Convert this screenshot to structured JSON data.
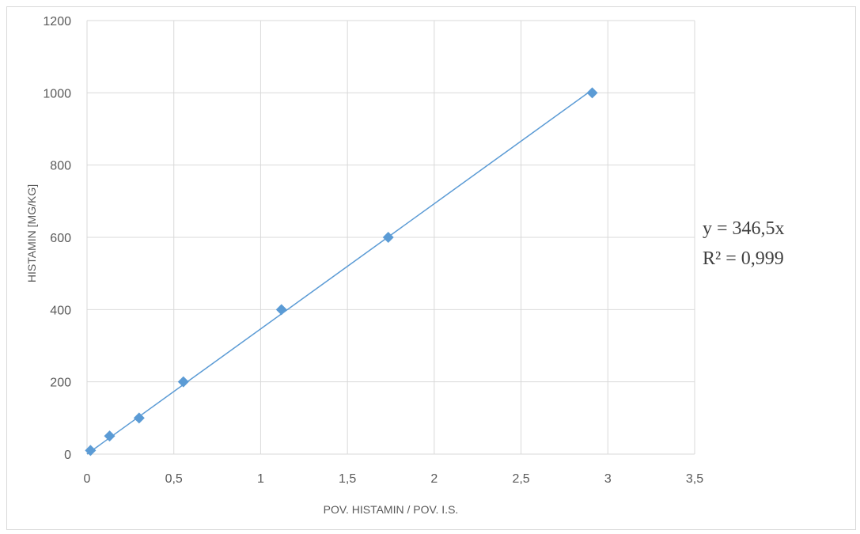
{
  "chart_data": {
    "type": "scatter",
    "xlabel": "POV. HISTAMIN / POV. I.S.",
    "ylabel": "HISTAMIN [MG/KG]",
    "xlim": [
      0,
      3.5
    ],
    "ylim": [
      0,
      1200
    ],
    "x_ticks": [
      "0",
      "0,5",
      "1",
      "1,5",
      "2",
      "2,5",
      "3",
      "3,5"
    ],
    "y_ticks": [
      "0",
      "200",
      "400",
      "600",
      "800",
      "1000",
      "1200"
    ],
    "grid": true,
    "series": [
      {
        "marker": "diamond",
        "color": "#5b9bd5",
        "points": [
          {
            "x": 0.02,
            "y": 10
          },
          {
            "x": 0.13,
            "y": 50
          },
          {
            "x": 0.3,
            "y": 100
          },
          {
            "x": 0.555,
            "y": 200
          },
          {
            "x": 1.12,
            "y": 400
          },
          {
            "x": 1.735,
            "y": 600
          },
          {
            "x": 2.91,
            "y": 1000
          }
        ]
      }
    ],
    "trendline": {
      "type": "linear",
      "slope": 346.5,
      "intercept": 0,
      "x_range": [
        0,
        2.91
      ],
      "color": "#5b9bd5",
      "equation": "y = 346,5x",
      "r_squared": "R² = 0,999"
    }
  }
}
